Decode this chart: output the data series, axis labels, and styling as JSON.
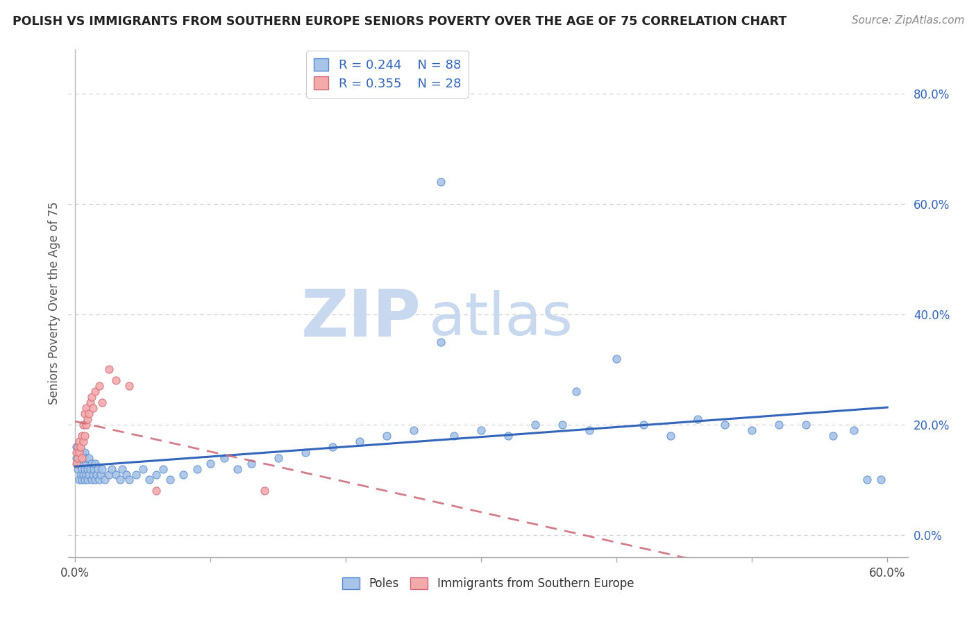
{
  "title": "POLISH VS IMMIGRANTS FROM SOUTHERN EUROPE SENIORS POVERTY OVER THE AGE OF 75 CORRELATION CHART",
  "source": "Source: ZipAtlas.com",
  "ylabel": "Seniors Poverty Over the Age of 75",
  "watermark_zip": "ZIP",
  "watermark_atlas": "atlas",
  "series": [
    {
      "name": "Poles",
      "R": 0.244,
      "N": 88,
      "color": "#a8c4e8",
      "edge_color": "#5588cc",
      "trend_color": "#3366bb",
      "trend_style": "solid"
    },
    {
      "name": "Immigrants from Southern Europe",
      "R": 0.355,
      "N": 28,
      "color": "#f4aaaa",
      "edge_color": "#cc6677",
      "trend_color": "#cc6677",
      "trend_style": "dashed"
    }
  ],
  "xlim": [
    0.0,
    0.62
  ],
  "ylim": [
    -0.02,
    0.86
  ],
  "plot_xlim": [
    0.0,
    0.6
  ],
  "xtick_positions": [
    0.0,
    0.1,
    0.2,
    0.3,
    0.4,
    0.5,
    0.6
  ],
  "xtick_labels_show": [
    "0.0%",
    "",
    "",
    "",
    "",
    "",
    "60.0%"
  ],
  "ytick_positions": [
    0.0,
    0.2,
    0.4,
    0.6,
    0.8
  ],
  "ytick_labels": [
    "0.0%",
    "20.0%",
    "40.0%",
    "60.0%",
    "80.0%"
  ],
  "grid_color": "#d0d0d0",
  "bg_color": "#ffffff",
  "legend_edge": "#cccccc",
  "title_color": "#222222",
  "source_color": "#888888",
  "ylabel_color": "#555555",
  "tick_color": "#3366bb",
  "poles_x": [
    0.001,
    0.001,
    0.002,
    0.002,
    0.002,
    0.003,
    0.003,
    0.003,
    0.003,
    0.004,
    0.004,
    0.004,
    0.005,
    0.005,
    0.005,
    0.005,
    0.006,
    0.006,
    0.006,
    0.007,
    0.007,
    0.007,
    0.008,
    0.008,
    0.008,
    0.009,
    0.009,
    0.01,
    0.01,
    0.011,
    0.012,
    0.012,
    0.013,
    0.014,
    0.015,
    0.015,
    0.016,
    0.017,
    0.018,
    0.019,
    0.02,
    0.022,
    0.025,
    0.027,
    0.03,
    0.033,
    0.035,
    0.038,
    0.04,
    0.045,
    0.05,
    0.055,
    0.06,
    0.065,
    0.07,
    0.08,
    0.09,
    0.1,
    0.11,
    0.12,
    0.13,
    0.15,
    0.17,
    0.19,
    0.21,
    0.23,
    0.25,
    0.27,
    0.28,
    0.3,
    0.32,
    0.34,
    0.36,
    0.38,
    0.4,
    0.42,
    0.44,
    0.46,
    0.48,
    0.5,
    0.52,
    0.54,
    0.56,
    0.575,
    0.585,
    0.595,
    0.27,
    0.37
  ],
  "poles_y": [
    0.14,
    0.16,
    0.12,
    0.13,
    0.15,
    0.1,
    0.13,
    0.14,
    0.16,
    0.11,
    0.13,
    0.15,
    0.1,
    0.12,
    0.14,
    0.15,
    0.11,
    0.13,
    0.14,
    0.1,
    0.12,
    0.15,
    0.11,
    0.13,
    0.14,
    0.1,
    0.12,
    0.11,
    0.14,
    0.12,
    0.1,
    0.13,
    0.11,
    0.12,
    0.1,
    0.13,
    0.11,
    0.12,
    0.1,
    0.11,
    0.12,
    0.1,
    0.11,
    0.12,
    0.11,
    0.1,
    0.12,
    0.11,
    0.1,
    0.11,
    0.12,
    0.1,
    0.11,
    0.12,
    0.1,
    0.11,
    0.12,
    0.13,
    0.14,
    0.12,
    0.13,
    0.14,
    0.15,
    0.16,
    0.17,
    0.18,
    0.19,
    0.35,
    0.18,
    0.19,
    0.18,
    0.2,
    0.2,
    0.19,
    0.32,
    0.2,
    0.18,
    0.21,
    0.2,
    0.19,
    0.2,
    0.2,
    0.18,
    0.19,
    0.1,
    0.1,
    0.64,
    0.26
  ],
  "se_x": [
    0.001,
    0.001,
    0.002,
    0.002,
    0.003,
    0.003,
    0.004,
    0.005,
    0.005,
    0.006,
    0.006,
    0.007,
    0.007,
    0.008,
    0.008,
    0.009,
    0.01,
    0.011,
    0.012,
    0.013,
    0.015,
    0.018,
    0.02,
    0.025,
    0.03,
    0.04,
    0.06,
    0.14
  ],
  "se_y": [
    0.13,
    0.15,
    0.14,
    0.16,
    0.15,
    0.17,
    0.16,
    0.14,
    0.18,
    0.17,
    0.2,
    0.22,
    0.18,
    0.23,
    0.2,
    0.21,
    0.22,
    0.24,
    0.25,
    0.23,
    0.26,
    0.27,
    0.24,
    0.3,
    0.28,
    0.27,
    0.08,
    0.08
  ]
}
